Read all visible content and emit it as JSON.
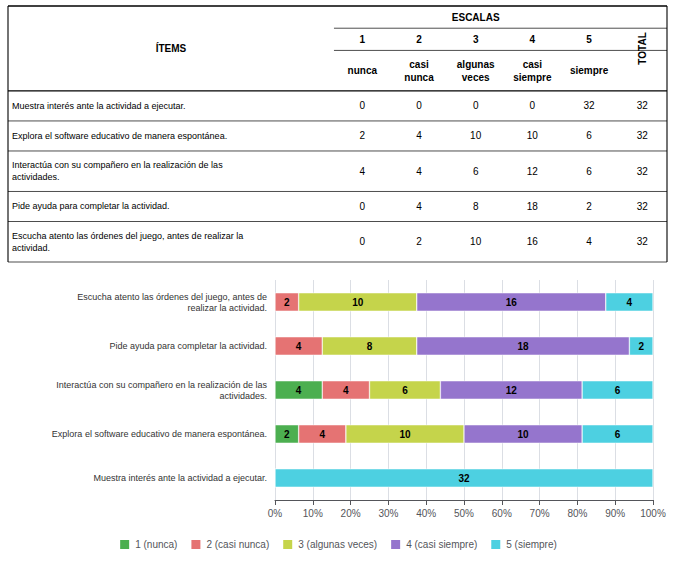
{
  "chart_data": [
    {
      "type": "table",
      "items_header": "ÍTEMS",
      "group_header": "ESCALAS",
      "column_numbers": [
        "1",
        "2",
        "3",
        "4",
        "5"
      ],
      "column_labels": [
        "nunca",
        "casi\nnunca",
        "algunas\nveces",
        "casi\nsiempre",
        "siempre"
      ],
      "total_header": "TOTAL",
      "rows": [
        "Muestra interés ante la actividad a ejecutar.",
        "Explora el software educativo de manera espontánea.",
        "Interactúa con su compañero en la realización de las\nactividades.",
        "Pide ayuda para completar la actividad.",
        "Escucha atento las órdenes del juego, antes de realizar la\nactividad."
      ],
      "cells": [
        [
          0,
          0,
          0,
          0,
          32,
          32
        ],
        [
          2,
          4,
          10,
          10,
          6,
          32
        ],
        [
          4,
          4,
          6,
          12,
          6,
          32
        ],
        [
          0,
          4,
          8,
          18,
          2,
          32
        ],
        [
          0,
          2,
          10,
          16,
          4,
          32
        ]
      ]
    },
    {
      "type": "bar",
      "orientation": "horizontal",
      "stacked": true,
      "categories": [
        "Muestra interés ante la actividad a ejecutar.",
        "Explora el software educativo de manera espontánea.",
        "Interactúa con su compañero en la realización de las\nactividades.",
        "Pide ayuda para completar la actividad.",
        "Escucha atento las órdenes del juego, antes de\nrealizar la actividad."
      ],
      "series": [
        {
          "name": "1 (nunca)",
          "color": "#4CAF50",
          "values": [
            0,
            6.25,
            12.5,
            0,
            0
          ],
          "counts": [
            0,
            2,
            4,
            0,
            0
          ]
        },
        {
          "name": "2 (casi nunca)",
          "color": "#E57373",
          "values": [
            0,
            12.5,
            12.5,
            12.5,
            6.25
          ],
          "counts": [
            0,
            4,
            4,
            4,
            2
          ]
        },
        {
          "name": "3 (algunas veces)",
          "color": "#C5D44B",
          "values": [
            0,
            31.25,
            18.75,
            25,
            31.25
          ],
          "counts": [
            0,
            10,
            6,
            8,
            10
          ]
        },
        {
          "name": "4 (casi siempre)",
          "color": "#9575CD",
          "values": [
            0,
            31.25,
            37.5,
            56.25,
            50
          ],
          "counts": [
            0,
            10,
            12,
            18,
            16
          ]
        },
        {
          "name": "5 (siempre)",
          "color": "#4DD0E1",
          "values": [
            100,
            18.75,
            18.75,
            6.25,
            12.5
          ],
          "counts": [
            32,
            6,
            6,
            2,
            4
          ]
        }
      ],
      "xlim": [
        0,
        100
      ],
      "xticks": [
        {
          "value": 0,
          "label": "0%"
        },
        {
          "value": 10,
          "label": "10%"
        },
        {
          "value": 20,
          "label": "20%"
        },
        {
          "value": 30,
          "label": "30%"
        },
        {
          "value": 40,
          "label": "40%"
        },
        {
          "value": 50,
          "label": "50%"
        },
        {
          "value": 60,
          "label": "60%"
        },
        {
          "value": 70,
          "label": "70%"
        },
        {
          "value": 80,
          "label": "80%"
        },
        {
          "value": 90,
          "label": "90%"
        },
        {
          "value": 100,
          "label": "100%"
        }
      ],
      "grid": true,
      "legend": "bottom"
    }
  ]
}
